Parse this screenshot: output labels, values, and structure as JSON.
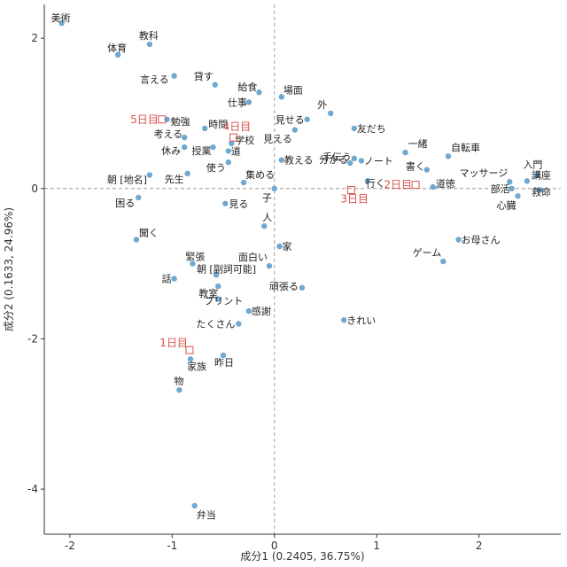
{
  "colors": {
    "word": "#6fa8d0",
    "day": "#d9534f",
    "axis": "#333333",
    "refline": "#888888"
  },
  "chart_data": {
    "type": "scatter",
    "xlabel": "成分1 (0.2405, 36.75%)",
    "ylabel": "成分2 (0.1633, 24.96%)",
    "xlim": [
      -2.25,
      2.8
    ],
    "ylim": [
      -4.6,
      2.45
    ],
    "xticks": [
      -2,
      -1,
      0,
      1,
      2
    ],
    "yticks": [
      2,
      0,
      -2,
      -4
    ],
    "reference_lines": {
      "x": 0,
      "y": 0
    },
    "grid": false,
    "series": [
      {
        "points": [
          {
            "label": "美術",
            "x": -2.08,
            "y": 2.2
          },
          {
            "label": "教科",
            "x": -1.22,
            "y": 1.92
          },
          {
            "label": "体育",
            "x": -1.53,
            "y": 1.78
          },
          {
            "label": "言える",
            "x": -0.98,
            "y": 1.5
          },
          {
            "label": "貸す",
            "x": -0.58,
            "y": 1.38
          },
          {
            "label": "給食",
            "x": -0.15,
            "y": 1.28
          },
          {
            "label": "場面",
            "x": 0.07,
            "y": 1.22
          },
          {
            "label": "仕事",
            "x": -0.25,
            "y": 1.15
          },
          {
            "label": "外",
            "x": 0.55,
            "y": 1.0
          },
          {
            "label": "見せる",
            "x": 0.32,
            "y": 0.92
          },
          {
            "label": "勉強",
            "x": -1.05,
            "y": 0.92
          },
          {
            "label": "時間",
            "x": -0.68,
            "y": 0.8
          },
          {
            "label": "友だち",
            "x": 0.78,
            "y": 0.8
          },
          {
            "label": "見える",
            "x": 0.2,
            "y": 0.78
          },
          {
            "label": "考える",
            "x": -0.88,
            "y": 0.68
          },
          {
            "label": "学校",
            "x": -0.42,
            "y": 0.6
          },
          {
            "label": "休み",
            "x": -0.88,
            "y": 0.55
          },
          {
            "label": "授業",
            "x": -0.6,
            "y": 0.55
          },
          {
            "label": "道",
            "x": -0.45,
            "y": 0.5
          },
          {
            "label": "一緒",
            "x": 1.28,
            "y": 0.48
          },
          {
            "label": "自転車",
            "x": 1.7,
            "y": 0.43
          },
          {
            "label": "手伝う",
            "x": 0.78,
            "y": 0.4
          },
          {
            "label": "ノート",
            "x": 0.85,
            "y": 0.37
          },
          {
            "label": "使う",
            "x": -0.45,
            "y": 0.35
          },
          {
            "label": "教える",
            "x": 0.07,
            "y": 0.38
          },
          {
            "label": "分かる",
            "x": 0.74,
            "y": 0.34
          },
          {
            "label": "書く",
            "x": 1.49,
            "y": 0.25
          },
          {
            "label": "入門",
            "x": 2.57,
            "y": 0.18
          },
          {
            "label": "朝[地名]",
            "x": -1.22,
            "y": 0.18
          },
          {
            "label": "先生",
            "x": -0.85,
            "y": 0.2
          },
          {
            "label": "集める",
            "x": -0.3,
            "y": 0.08
          },
          {
            "label": "行く",
            "x": 0.91,
            "y": 0.1
          },
          {
            "label": "マッサージ",
            "x": 2.3,
            "y": 0.09
          },
          {
            "label": "講座",
            "x": 2.47,
            "y": 0.1
          },
          {
            "label": "道徳",
            "x": 1.55,
            "y": 0.02
          },
          {
            "label": "子",
            "x": 0.0,
            "y": 0.0
          },
          {
            "label": "部活",
            "x": 2.32,
            "y": 0.0
          },
          {
            "label": "救命",
            "x": 2.6,
            "y": -0.02
          },
          {
            "label": "心臓",
            "x": 2.38,
            "y": -0.1
          },
          {
            "label": "困る",
            "x": -1.33,
            "y": -0.12
          },
          {
            "label": "見る",
            "x": -0.48,
            "y": -0.2
          },
          {
            "label": "人",
            "x": -0.1,
            "y": -0.5
          },
          {
            "label": "聞く",
            "x": -1.35,
            "y": -0.68
          },
          {
            "label": "お母さん",
            "x": 1.8,
            "y": -0.68
          },
          {
            "label": "家",
            "x": 0.05,
            "y": -0.77
          },
          {
            "label": "ゲーム",
            "x": 1.65,
            "y": -0.97
          },
          {
            "label": "緊張",
            "x": -0.8,
            "y": -1.0
          },
          {
            "label": "面白い",
            "x": -0.05,
            "y": -1.03
          },
          {
            "label": "朝[副詞可能]",
            "x": -0.57,
            "y": -1.15
          },
          {
            "label": "話",
            "x": -0.98,
            "y": -1.2
          },
          {
            "label": "教室",
            "x": -0.55,
            "y": -1.3
          },
          {
            "label": "頑張る",
            "x": 0.27,
            "y": -1.32
          },
          {
            "label": "プリント",
            "x": -0.55,
            "y": -1.47
          },
          {
            "label": "感謝",
            "x": -0.25,
            "y": -1.63
          },
          {
            "label": "たくさん",
            "x": -0.35,
            "y": -1.8
          },
          {
            "label": "きれい",
            "x": 0.68,
            "y": -1.75
          },
          {
            "label": "昨日",
            "x": -0.5,
            "y": -2.22
          },
          {
            "label": "家族",
            "x": -0.82,
            "y": -2.27
          },
          {
            "label": "物",
            "x": -0.93,
            "y": -2.68
          },
          {
            "label": "弁当",
            "x": -0.78,
            "y": -4.22
          }
        ]
      },
      {
        "points": [
          {
            "label": "1日目",
            "x": -0.83,
            "y": -2.15
          },
          {
            "label": "2日目",
            "x": 1.38,
            "y": 0.05
          },
          {
            "label": "3日目",
            "x": 0.75,
            "y": -0.02
          },
          {
            "label": "4日目",
            "x": -0.4,
            "y": 0.68
          },
          {
            "label": "5日目",
            "x": -1.1,
            "y": 0.92
          }
        ]
      }
    ]
  }
}
